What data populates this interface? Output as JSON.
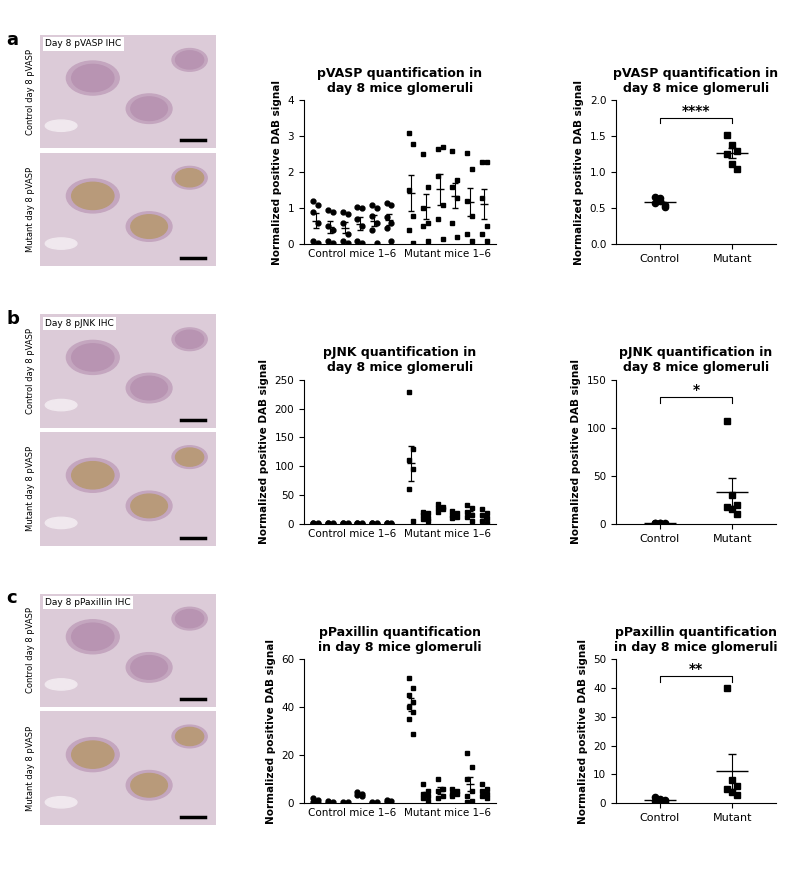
{
  "panels": [
    {
      "letter": "a",
      "image_title": "Day 8 pVASP IHC",
      "image_labels": [
        "Control day 8 pVASP",
        "Mutant day 8 pVASP"
      ]
    },
    {
      "letter": "b",
      "image_title": "Day 8 pJNK IHC",
      "image_labels": [
        "Control day 8 pVASP",
        "Mutant day 8 pVASP"
      ]
    },
    {
      "letter": "c",
      "image_title": "Day 8 pPaxillin IHC",
      "image_labels": [
        "Control day 8 pVASP",
        "Mutant day 8 pVASP"
      ]
    }
  ],
  "chart_data": [
    {
      "type": "scatter",
      "title": "pVASP quantification in day 8 mice glomeruli",
      "ylabel": "Normalized positive DAB signal",
      "ylim": [
        0,
        4
      ],
      "yticks": [
        0,
        1,
        2,
        3,
        4
      ],
      "groups": [
        {
          "label": "Control mice 1–6",
          "marker": "circle",
          "color": "#000000",
          "points": [
            [
              1.2,
              1.1,
              0.9,
              0.6,
              0.1,
              0.05
            ],
            [
              0.95,
              0.9,
              0.5,
              0.4,
              0.1,
              0.05
            ],
            [
              0.9,
              0.85,
              0.6,
              0.3,
              0.1,
              0.05
            ],
            [
              1.05,
              1.0,
              0.7,
              0.5,
              0.1,
              0.05
            ],
            [
              1.1,
              1.0,
              0.8,
              0.6,
              0.4,
              0.05
            ],
            [
              1.15,
              1.1,
              0.75,
              0.6,
              0.45,
              0.1
            ]
          ],
          "means": [
            0.66,
            0.48,
            0.47,
            0.57,
            0.66,
            0.69
          ],
          "errors": [
            0.2,
            0.16,
            0.15,
            0.18,
            0.15,
            0.16
          ]
        },
        {
          "label": "Mutant mice 1–6",
          "marker": "square",
          "color": "#000000",
          "points": [
            [
              3.1,
              2.8,
              1.5,
              0.8,
              0.4,
              0.05
            ],
            [
              2.5,
              1.6,
              1.0,
              0.6,
              0.5,
              0.1
            ],
            [
              2.65,
              2.7,
              1.9,
              1.1,
              0.7,
              0.15
            ],
            [
              2.6,
              1.8,
              1.6,
              1.3,
              0.6,
              0.2
            ],
            [
              2.55,
              2.1,
              1.2,
              0.8,
              0.3,
              0.1
            ],
            [
              2.3,
              2.3,
              1.3,
              0.5,
              0.3,
              0.1
            ]
          ],
          "means": [
            1.44,
            1.05,
            1.53,
            1.35,
            1.18,
            1.13
          ],
          "errors": [
            0.5,
            0.35,
            0.43,
            0.35,
            0.39,
            0.41
          ]
        }
      ]
    },
    {
      "type": "scatter",
      "title": "pVASP quantification in day 8 mice glomeruli",
      "ylabel": "Normalized positive DAB signal",
      "ylim": [
        0,
        2
      ],
      "yticks": [
        {
          "value": 0,
          "label": "0.0"
        },
        {
          "value": 0.5,
          "label": "0.5"
        },
        {
          "value": 1,
          "label": "1.0"
        },
        {
          "value": 1.5,
          "label": "1.5"
        },
        {
          "value": 2,
          "label": "2.0"
        }
      ],
      "categories": [
        "Control",
        "Mutant"
      ],
      "markers": [
        "circle",
        "square"
      ],
      "color": "#000000",
      "points": [
        [
          0.66,
          0.6,
          0.55,
          0.58,
          0.65,
          0.52
        ],
        [
          1.52,
          1.38,
          1.3,
          1.25,
          1.12,
          1.05
        ]
      ],
      "means": [
        0.59,
        1.27
      ],
      "errors": [
        0.02,
        0.07
      ],
      "significance": "****"
    },
    {
      "type": "scatter",
      "title": "pJNK quantification in day 8 mice glomeruli",
      "ylabel": "Normalized positive DAB signal",
      "ylim": [
        0,
        250
      ],
      "yticks": [
        0,
        50,
        100,
        150,
        200,
        250
      ],
      "groups": [
        {
          "label": "Control mice 1–6",
          "marker": "circle",
          "color": "#000000",
          "points": [
            [
              2,
              1.5,
              1,
              0.5,
              0.2,
              0.1
            ],
            [
              2,
              1.5,
              1,
              0.5,
              0.2,
              0.1
            ],
            [
              2,
              1.5,
              1,
              0.5,
              0.2,
              0.1
            ],
            [
              2,
              1.5,
              1,
              0.5,
              0.2,
              0.1
            ],
            [
              2,
              1.5,
              1,
              0.5,
              0.2,
              0.1
            ],
            [
              2,
              1.5,
              1,
              0.5,
              0.2,
              0.1
            ]
          ],
          "means": [
            0.9,
            0.9,
            0.9,
            0.9,
            0.9,
            0.9
          ],
          "errors": [
            0.3,
            0.3,
            0.3,
            0.3,
            0.3,
            0.3
          ]
        },
        {
          "label": "Mutant mice 1–6",
          "marker": "square",
          "color": "#000000",
          "points": [
            [
              228,
              130,
              110,
              95,
              60,
              5
            ],
            [
              20,
              18,
              15,
              10,
              8,
              5
            ],
            [
              35,
              30,
              28,
              25,
              20
            ],
            [
              22,
              18,
              15,
              12,
              10
            ],
            [
              33,
              28,
              20,
              15,
              12,
              5
            ],
            [
              25,
              18,
              15,
              10,
              5,
              2
            ]
          ],
          "means": [
            104.7,
            12.7,
            27.6,
            15.4,
            18.8,
            12.5
          ],
          "errors": [
            30,
            2.4,
            2.5,
            2.1,
            4.2,
            3.5
          ]
        }
      ]
    },
    {
      "type": "scatter",
      "title": "pJNK quantification in day 8 mice glomeruli",
      "ylabel": "Normalized positive DAB signal",
      "ylim": [
        0,
        150
      ],
      "yticks": [
        0,
        50,
        100,
        150
      ],
      "categories": [
        "Control",
        "Mutant"
      ],
      "markers": [
        "circle",
        "square"
      ],
      "color": "#000000",
      "points": [
        [
          1,
          0.8,
          0.6,
          0.5,
          0.4,
          0.3
        ],
        [
          107,
          30,
          20,
          17,
          15,
          10
        ]
      ],
      "means": [
        0.6,
        33.2
      ],
      "errors": [
        0.1,
        15
      ],
      "significance": "*"
    },
    {
      "type": "scatter",
      "title": "pPaxillin quantification in day 8 mice glomeruli",
      "ylabel": "Normalized positive DAB signal",
      "ylim": [
        0,
        60
      ],
      "yticks": [
        0,
        20,
        40,
        60
      ],
      "groups": [
        {
          "label": "Control mice 1–6",
          "marker": "circle",
          "color": "#000000",
          "points": [
            [
              2,
              1.5,
              0.5,
              0.2
            ],
            [
              1,
              0.5,
              0.2
            ],
            [
              0.5,
              0.3
            ],
            [
              4.5,
              4,
              3.5,
              3
            ],
            [
              0.5,
              0.3,
              0.2
            ],
            [
              1.5,
              1,
              0.5
            ]
          ],
          "means": [
            1.05,
            0.57,
            0.4,
            3.75,
            0.33,
            1.0
          ],
          "errors": [
            0.4,
            0.23,
            0.1,
            0.32,
            0.09,
            0.29
          ]
        },
        {
          "label": "Mutant mice 1–6",
          "marker": "square",
          "color": "#000000",
          "points": [
            [
              52,
              48,
              45,
              42,
              40,
              38,
              35,
              29
            ],
            [
              8,
              5,
              4,
              3,
              2,
              1
            ],
            [
              10,
              6,
              5,
              3,
              2
            ],
            [
              6,
              5,
              4,
              4,
              3
            ],
            [
              21,
              15,
              10,
              5,
              3,
              1,
              0.5
            ],
            [
              8,
              6,
              5,
              4,
              3,
              2
            ]
          ],
          "means": [
            41.1,
            3.8,
            5.2,
            4.4,
            7.9,
            4.7
          ],
          "errors": [
            2.6,
            1.0,
            1.4,
            0.5,
            2.9,
            0.9
          ]
        }
      ]
    },
    {
      "type": "scatter",
      "title": "pPaxillin quantification in day 8 mice glomeruli",
      "ylabel": "Normalized positive DAB signal",
      "ylim": [
        0,
        50
      ],
      "yticks": [
        0,
        10,
        20,
        30,
        40,
        50
      ],
      "categories": [
        "Control",
        "Mutant"
      ],
      "markers": [
        "circle",
        "square"
      ],
      "color": "#000000",
      "points": [
        [
          2,
          1.5,
          1,
          0.8,
          0.5,
          0.3
        ],
        [
          40,
          8,
          6,
          5,
          4,
          3
        ]
      ],
      "means": [
        1.0,
        11
      ],
      "errors": [
        0.26,
        6
      ],
      "significance": "**"
    }
  ]
}
